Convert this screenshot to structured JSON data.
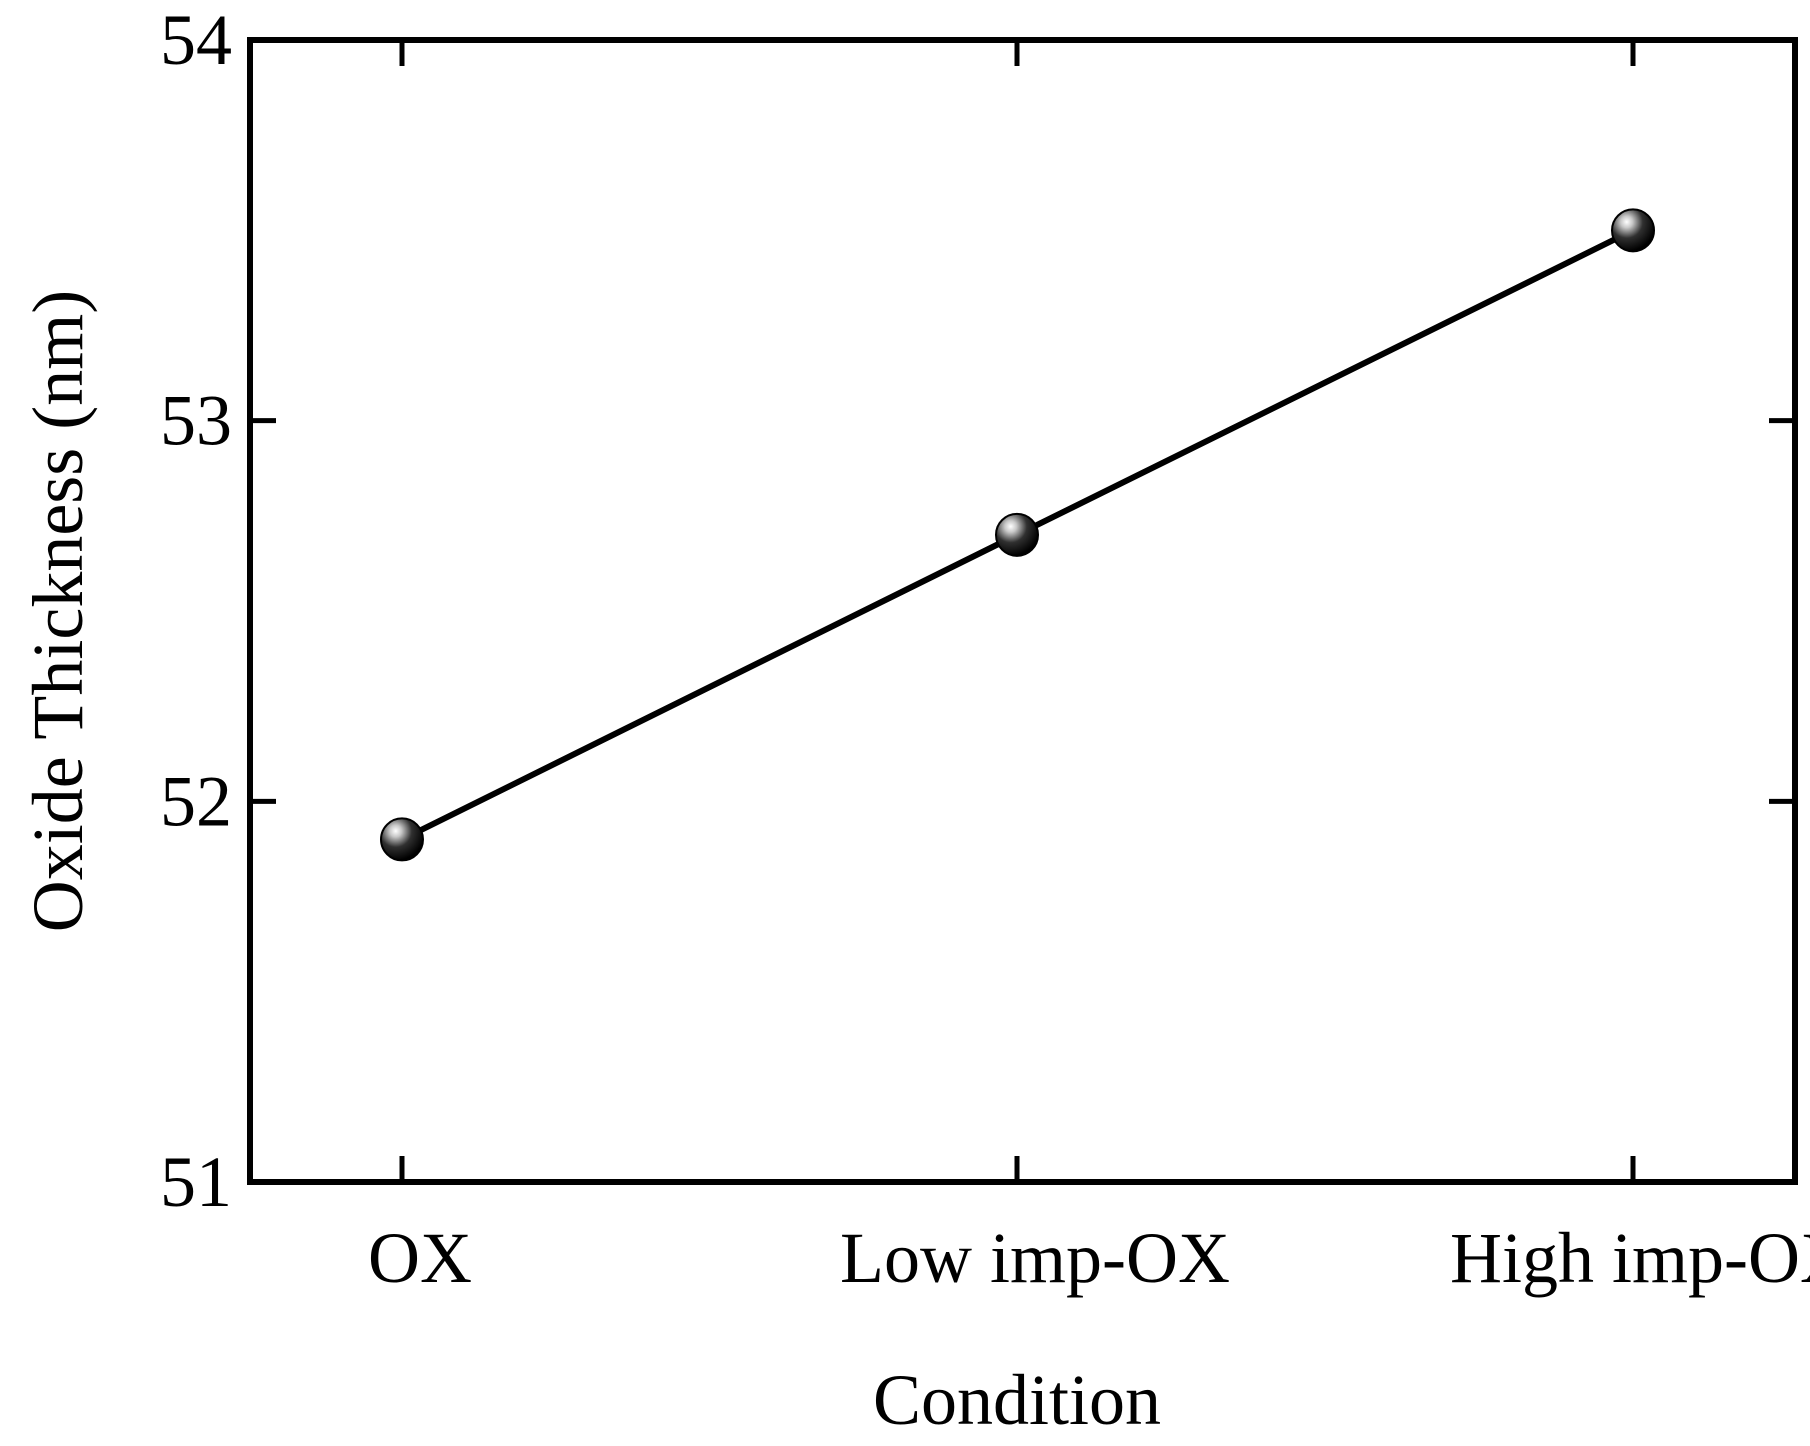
{
  "chart_data": {
    "type": "line",
    "title": "",
    "xlabel": "Condition",
    "ylabel": "Oxide Thickness (nm)",
    "categories": [
      "OX",
      "Low imp-OX",
      "High imp-OX"
    ],
    "series": [
      {
        "name": "Oxide Thickness",
        "values": [
          51.9,
          52.7,
          53.5
        ]
      }
    ],
    "ylim": [
      51,
      54
    ],
    "yticks": [
      51,
      52,
      53,
      54
    ],
    "ytick_labels": [
      "51",
      "52",
      "53",
      "54"
    ],
    "grid": false,
    "legend": "none",
    "colors": {
      "line": "#000000",
      "marker_dark": "#000000",
      "marker_light": "#ffffff",
      "axis": "#000000"
    }
  }
}
